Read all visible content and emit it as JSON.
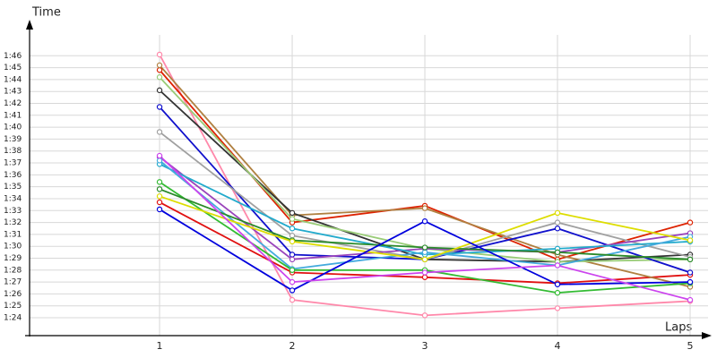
{
  "chart_data": {
    "type": "line",
    "y_label": "Time",
    "x_label": "Laps",
    "x": [
      1,
      2,
      3,
      4,
      5
    ],
    "xlim": [
      0.02,
      5.135
    ],
    "xticks": [
      1,
      2,
      3,
      4,
      5
    ],
    "ylim": [
      82.5,
      108.5
    ],
    "yticks": [
      {
        "value": 84,
        "label": "1:24"
      },
      {
        "value": 85,
        "label": "1:25"
      },
      {
        "value": 86,
        "label": "1:26"
      },
      {
        "value": 87,
        "label": "1:27"
      },
      {
        "value": 88,
        "label": "1:28"
      },
      {
        "value": 89,
        "label": "1:29"
      },
      {
        "value": 90,
        "label": "1:30"
      },
      {
        "value": 91,
        "label": "1:31"
      },
      {
        "value": 92,
        "label": "1:32"
      },
      {
        "value": 93,
        "label": "1:33"
      },
      {
        "value": 94,
        "label": "1:34"
      },
      {
        "value": 95,
        "label": "1:35"
      },
      {
        "value": 96,
        "label": "1:36"
      },
      {
        "value": 97,
        "label": "1:37"
      },
      {
        "value": 98,
        "label": "1:38"
      },
      {
        "value": 99,
        "label": "1:39"
      },
      {
        "value": 100,
        "label": "1:40"
      },
      {
        "value": 101,
        "label": "1:41"
      },
      {
        "value": 102,
        "label": "1:42"
      },
      {
        "value": 103,
        "label": "1:43"
      },
      {
        "value": 104,
        "label": "1:44"
      },
      {
        "value": 105,
        "label": "1:45"
      },
      {
        "value": 106,
        "label": "1:46"
      }
    ],
    "grid": true,
    "series": [
      {
        "color": "#ff88aa",
        "values": [
          106.1,
          85.5,
          84.2,
          84.8,
          85.4
        ]
      },
      {
        "color": "#e01010",
        "values": [
          93.7,
          87.8,
          87.4,
          86.9,
          87.6
        ]
      },
      {
        "color": "#dd2200",
        "values": [
          104.8,
          92.0,
          93.4,
          88.9,
          92.0
        ]
      },
      {
        "color": "#b08040",
        "values": [
          105.2,
          92.6,
          93.2,
          89.3,
          86.6
        ]
      },
      {
        "color": "#333333",
        "values": [
          103.1,
          92.8,
          88.9,
          88.7,
          89.3
        ]
      },
      {
        "color": "#99cc77",
        "values": [
          104.2,
          92.3,
          89.8,
          88.7,
          88.9
        ]
      },
      {
        "color": "#1010cc",
        "values": [
          101.7,
          89.3,
          88.9,
          91.5,
          87.8
        ]
      },
      {
        "color": "#a0a0a0",
        "values": [
          99.6,
          90.9,
          88.9,
          92.0,
          89.1
        ]
      },
      {
        "color": "#9944bb",
        "values": [
          97.5,
          88.9,
          89.8,
          89.5,
          91.1
        ]
      },
      {
        "color": "#22aacc",
        "values": [
          96.9,
          91.5,
          89.3,
          89.8,
          90.4
        ]
      },
      {
        "color": "#44aadd",
        "values": [
          97.2,
          88.1,
          89.5,
          88.4,
          90.8
        ]
      },
      {
        "color": "#33bb33",
        "values": [
          95.4,
          88.0,
          88.0,
          86.1,
          86.9
        ]
      },
      {
        "color": "#2a8a2a",
        "values": [
          94.8,
          90.5,
          89.9,
          89.5,
          88.9
        ]
      },
      {
        "color": "#dddd00",
        "values": [
          94.2,
          90.4,
          88.9,
          92.8,
          90.5
        ]
      },
      {
        "color": "#0000dd",
        "values": [
          93.1,
          86.3,
          92.1,
          86.8,
          87.0
        ]
      },
      {
        "color": "#cc44ee",
        "values": [
          97.6,
          87.0,
          87.8,
          88.4,
          85.5
        ]
      }
    ]
  }
}
